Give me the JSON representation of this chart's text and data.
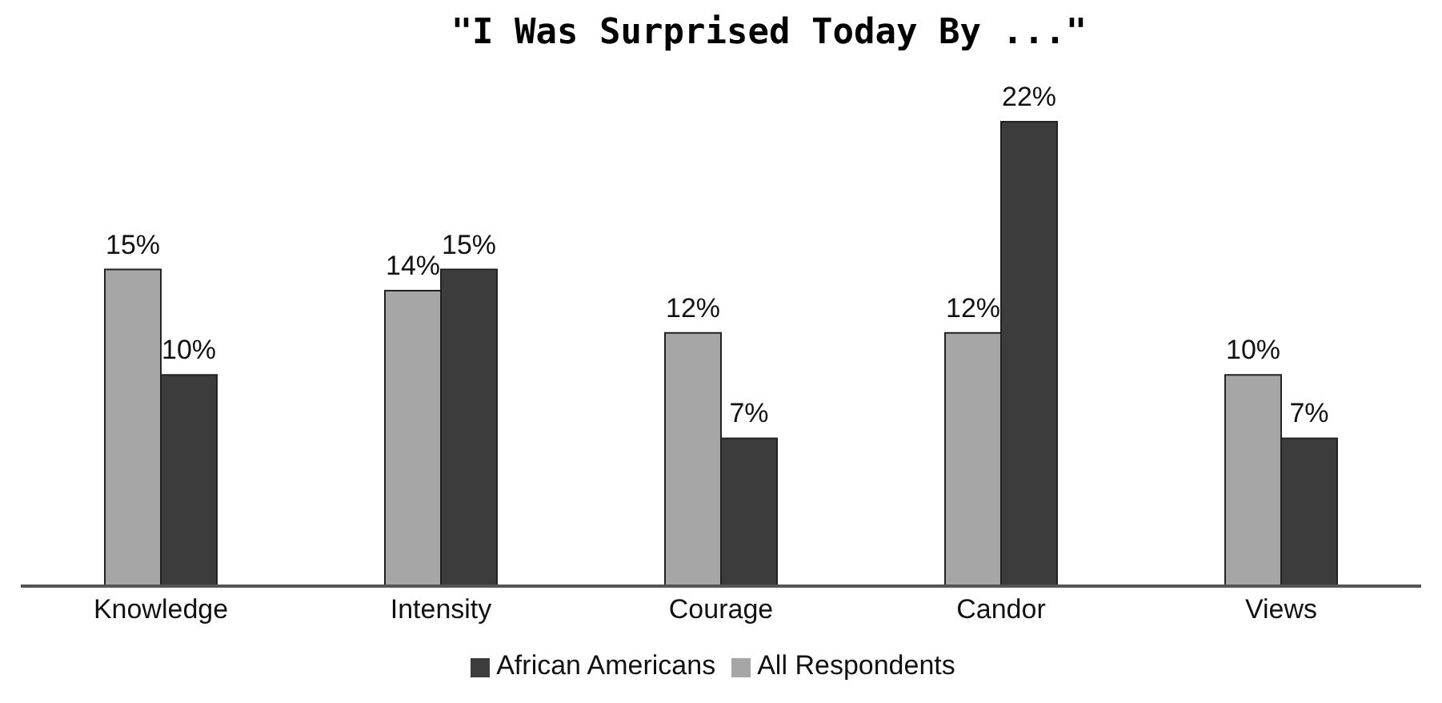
{
  "chart_data": {
    "type": "bar",
    "title": "\"I Was Surprised Today By ...\"",
    "categories": [
      "Knowledge",
      "Intensity",
      "Courage",
      "Candor",
      "Views"
    ],
    "series": [
      {
        "name": "All Respondents",
        "color": "#a6a6a6",
        "values": [
          15,
          14,
          12,
          12,
          10
        ],
        "value_labels": [
          "15%",
          "14%",
          "12%",
          "12%",
          "10%"
        ]
      },
      {
        "name": "African Americans",
        "color": "#3c3c3c",
        "values": [
          10,
          15,
          7,
          22,
          7
        ],
        "value_labels": [
          "10%",
          "15%",
          "7%",
          "22%",
          "7%"
        ]
      }
    ],
    "legend": "bottom",
    "grid": false
  }
}
